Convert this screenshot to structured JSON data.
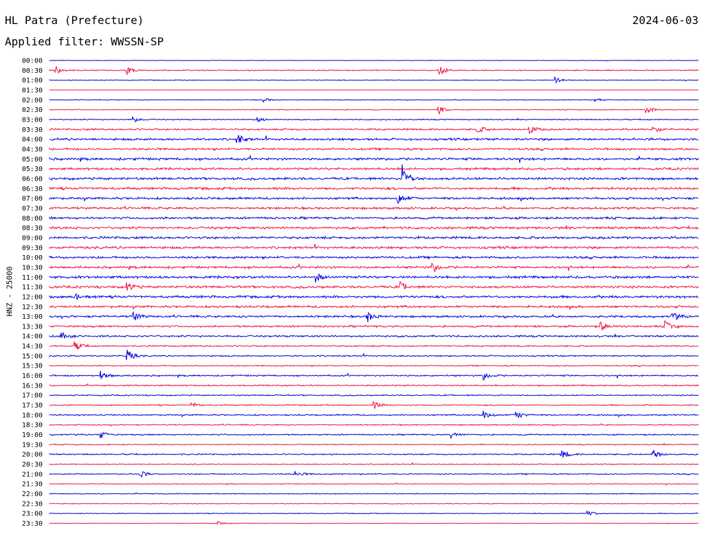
{
  "header": {
    "station": "HL Patra (Prefecture)",
    "date": "2024-06-03",
    "filter": "Applied filter: WWSSN-SP"
  },
  "colors": {
    "even_trace": "#0000dd",
    "odd_trace": "#ee1144",
    "text": "#000000"
  },
  "chart_data": {
    "type": "seismogram-helicorder",
    "channel_label": "HNZ - 25000",
    "row_interval_minutes": 30,
    "rows": [
      "00:00",
      "00:30",
      "01:00",
      "01:30",
      "02:00",
      "02:30",
      "03:00",
      "03:30",
      "04:00",
      "04:30",
      "05:00",
      "05:30",
      "06:00",
      "06:30",
      "07:00",
      "07:30",
      "08:00",
      "08:30",
      "09:00",
      "09:30",
      "10:00",
      "10:30",
      "11:00",
      "11:30",
      "12:00",
      "12:30",
      "13:00",
      "13:30",
      "14:00",
      "14:30",
      "15:00",
      "15:30",
      "16:00",
      "16:30",
      "17:00",
      "17:30",
      "18:00",
      "18:30",
      "19:00",
      "19:30",
      "20:00",
      "20:30",
      "21:00",
      "21:30",
      "22:00",
      "22:30",
      "23:00",
      "23:30"
    ],
    "noise_level": [
      0.3,
      0.7,
      0.5,
      0.15,
      0.45,
      0.55,
      0.7,
      1.2,
      1.5,
      1.4,
      1.6,
      1.5,
      1.6,
      1.6,
      1.5,
      1.5,
      1.5,
      1.6,
      1.6,
      1.6,
      1.5,
      1.5,
      1.6,
      1.6,
      1.6,
      1.5,
      1.4,
      1.3,
      1.2,
      1.0,
      0.9,
      0.8,
      1.0,
      0.9,
      0.8,
      0.8,
      0.9,
      0.8,
      0.9,
      0.7,
      0.9,
      0.6,
      0.8,
      0.5,
      0.6,
      0.5,
      0.5,
      0.3
    ],
    "events": [
      {
        "row": "00:30",
        "pos": 0.01,
        "amp": 5
      },
      {
        "row": "00:30",
        "pos": 0.12,
        "amp": 6
      },
      {
        "row": "00:30",
        "pos": 0.6,
        "amp": 8
      },
      {
        "row": "01:00",
        "pos": 0.78,
        "amp": 4
      },
      {
        "row": "02:00",
        "pos": 0.33,
        "amp": 3
      },
      {
        "row": "02:00",
        "pos": 0.84,
        "amp": 3
      },
      {
        "row": "02:30",
        "pos": 0.6,
        "amp": 6
      },
      {
        "row": "02:30",
        "pos": 0.92,
        "amp": 6
      },
      {
        "row": "03:00",
        "pos": 0.13,
        "amp": 4
      },
      {
        "row": "03:00",
        "pos": 0.32,
        "amp": 4
      },
      {
        "row": "03:30",
        "pos": 0.66,
        "amp": 5
      },
      {
        "row": "03:30",
        "pos": 0.74,
        "amp": 6
      },
      {
        "row": "03:30",
        "pos": 0.93,
        "amp": 6
      },
      {
        "row": "04:00",
        "pos": 0.29,
        "amp": 7
      },
      {
        "row": "06:00",
        "pos": 0.545,
        "amp": 20
      },
      {
        "row": "07:00",
        "pos": 0.538,
        "amp": 8
      },
      {
        "row": "10:30",
        "pos": 0.59,
        "amp": 8
      },
      {
        "row": "11:00",
        "pos": 0.41,
        "amp": 7
      },
      {
        "row": "11:30",
        "pos": 0.12,
        "amp": 6
      },
      {
        "row": "11:30",
        "pos": 0.54,
        "amp": 8
      },
      {
        "row": "12:00",
        "pos": 0.04,
        "amp": 5
      },
      {
        "row": "13:00",
        "pos": 0.49,
        "amp": 8
      },
      {
        "row": "13:00",
        "pos": 0.13,
        "amp": 6
      },
      {
        "row": "13:00",
        "pos": 0.96,
        "amp": 6
      },
      {
        "row": "13:30",
        "pos": 0.85,
        "amp": 6
      },
      {
        "row": "13:30",
        "pos": 0.95,
        "amp": 7
      },
      {
        "row": "14:00",
        "pos": 0.02,
        "amp": 6
      },
      {
        "row": "14:30",
        "pos": 0.04,
        "amp": 7
      },
      {
        "row": "15:00",
        "pos": 0.12,
        "amp": 9
      },
      {
        "row": "16:00",
        "pos": 0.08,
        "amp": 6
      },
      {
        "row": "16:00",
        "pos": 0.67,
        "amp": 6
      },
      {
        "row": "17:30",
        "pos": 0.22,
        "amp": 4
      },
      {
        "row": "17:30",
        "pos": 0.5,
        "amp": 5
      },
      {
        "row": "18:00",
        "pos": 0.67,
        "amp": 6
      },
      {
        "row": "18:00",
        "pos": 0.72,
        "amp": 6
      },
      {
        "row": "19:00",
        "pos": 0.08,
        "amp": 5
      },
      {
        "row": "19:00",
        "pos": 0.62,
        "amp": 5
      },
      {
        "row": "20:00",
        "pos": 0.79,
        "amp": 7
      },
      {
        "row": "20:00",
        "pos": 0.93,
        "amp": 7
      },
      {
        "row": "21:00",
        "pos": 0.14,
        "amp": 5
      },
      {
        "row": "21:00",
        "pos": 0.38,
        "amp": 5
      },
      {
        "row": "23:00",
        "pos": 0.83,
        "amp": 5
      },
      {
        "row": "23:30",
        "pos": 0.26,
        "amp": 3
      }
    ]
  }
}
